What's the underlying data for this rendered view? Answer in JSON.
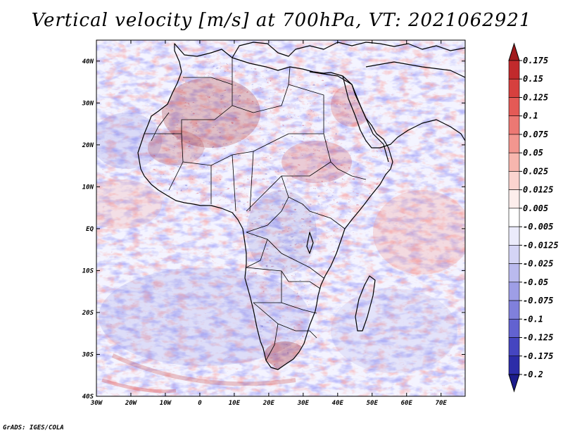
{
  "title": "Vertical velocity [m/s] at 700hPa, VT: 2021062921",
  "credit": "GrADS: IGES/COLA",
  "map": {
    "lat_labels": [
      "40N",
      "30N",
      "20N",
      "10N",
      "EQ",
      "10S",
      "20S",
      "30S",
      "40S"
    ],
    "lon_labels": [
      "30W",
      "20W",
      "10W",
      "0",
      "10E",
      "20E",
      "30E",
      "40E",
      "50E",
      "60E",
      "70E"
    ],
    "lat_range": [
      -40,
      45
    ],
    "lon_range": [
      -30,
      77
    ]
  },
  "colorbar": {
    "levels": [
      "0.175",
      "0.15",
      "0.125",
      "0.1",
      "0.075",
      "0.05",
      "0.025",
      "0.0125",
      "0.005",
      "-0.005",
      "-0.0125",
      "-0.025",
      "-0.05",
      "-0.075",
      "-0.1",
      "-0.125",
      "-0.175",
      "-0.2"
    ],
    "colors": [
      "#a11a1c",
      "#c12a2c",
      "#d6403e",
      "#e45a56",
      "#ec7873",
      "#f2968f",
      "#f7b6ae",
      "#fbd4cf",
      "#fdeeec",
      "#ffffff",
      "#ebebfb",
      "#d4d4f5",
      "#babaee",
      "#9e9ee6",
      "#8080dc",
      "#6262d0",
      "#4545c0",
      "#2c2ca8",
      "#1c1c8c"
    ]
  }
}
